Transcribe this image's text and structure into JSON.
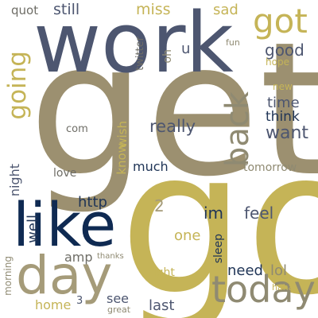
{
  "palette": {
    "navy": "#1f3456",
    "slate": "#4d5670",
    "khaki": "#9c9070",
    "gold": "#c5b457",
    "tan": "#a59b79",
    "background": "#ffffff"
  },
  "words": [
    {
      "text": "get",
      "color": "#9c9070"
    },
    {
      "text": "go",
      "color": "#c5b457"
    },
    {
      "text": "work",
      "color": "#4d5670"
    },
    {
      "text": "like",
      "color": "#0f2a52"
    },
    {
      "text": "day",
      "color": "#a59b79"
    },
    {
      "text": "today",
      "color": "#8f8a72"
    },
    {
      "text": "back",
      "color": "#8f8a72"
    },
    {
      "text": "got",
      "color": "#c5b457"
    },
    {
      "text": "going",
      "color": "#c5b457"
    },
    {
      "text": "good",
      "color": "#4d5670"
    },
    {
      "text": "want",
      "color": "#4d5670"
    },
    {
      "text": "really",
      "color": "#4d5670"
    },
    {
      "text": "time",
      "color": "#4d5670"
    },
    {
      "text": "think",
      "color": "#1f3456"
    },
    {
      "text": "still",
      "color": "#4d5670"
    },
    {
      "text": "miss",
      "color": "#c5b457"
    },
    {
      "text": "sad",
      "color": "#c5b457"
    },
    {
      "text": "quot",
      "color": "#6e6d66"
    },
    {
      "text": "twitter",
      "color": "#6e6d66"
    },
    {
      "text": "oh",
      "color": "#8f8a72"
    },
    {
      "text": "u",
      "color": "#4d5670"
    },
    {
      "text": "fun",
      "color": "#8f8a72"
    },
    {
      "text": "hope",
      "color": "#c5b457"
    },
    {
      "text": "new",
      "color": "#c5b457"
    },
    {
      "text": "wish",
      "color": "#c5b457"
    },
    {
      "text": "com",
      "color": "#6e6d66"
    },
    {
      "text": "know",
      "color": "#c5b457"
    },
    {
      "text": "much",
      "color": "#1f3456"
    },
    {
      "text": "tomorrow",
      "color": "#8f8a72"
    },
    {
      "text": "love",
      "color": "#6e6d66"
    },
    {
      "text": "night",
      "color": "#4d5670"
    },
    {
      "text": "http",
      "color": "#1f3456"
    },
    {
      "text": "2",
      "color": "#a59b79"
    },
    {
      "text": "im",
      "color": "#1f3456"
    },
    {
      "text": "feel",
      "color": "#4d5670"
    },
    {
      "text": "well",
      "color": "#1f3456"
    },
    {
      "text": "one",
      "color": "#c5b457"
    },
    {
      "text": "amp",
      "color": "#6e6d66"
    },
    {
      "text": "thanks",
      "color": "#8f8a72"
    },
    {
      "text": "sleep",
      "color": "#1f3456"
    },
    {
      "text": "need",
      "color": "#1f3456"
    },
    {
      "text": "lol",
      "color": "#8f8a72"
    },
    {
      "text": "morning",
      "color": "#8f8a72"
    },
    {
      "text": "right",
      "color": "#c5b457"
    },
    {
      "text": "haha",
      "color": "#c5b457"
    },
    {
      "text": "home",
      "color": "#c5b457"
    },
    {
      "text": "3",
      "color": "#4d5670"
    },
    {
      "text": "see",
      "color": "#4d5670"
    },
    {
      "text": "last",
      "color": "#4d5670"
    },
    {
      "text": "great",
      "color": "#8f8a72"
    }
  ]
}
